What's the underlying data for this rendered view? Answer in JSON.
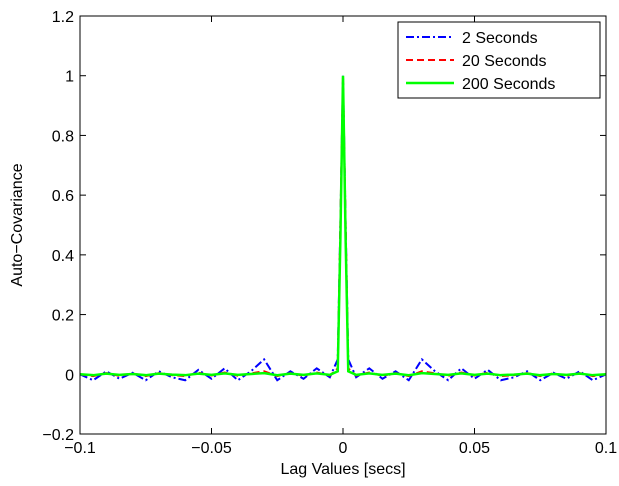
{
  "chart_data": {
    "type": "line",
    "xlabel": "Lag Values [secs]",
    "ylabel": "Auto−Covariance",
    "x": [
      -0.1,
      -0.095,
      -0.09,
      -0.085,
      -0.08,
      -0.075,
      -0.07,
      -0.065,
      -0.06,
      -0.055,
      -0.05,
      -0.045,
      -0.04,
      -0.035,
      -0.03,
      -0.025,
      -0.02,
      -0.015,
      -0.01,
      -0.005,
      -0.002,
      -0.001,
      0,
      0.001,
      0.002,
      0.005,
      0.01,
      0.015,
      0.02,
      0.025,
      0.03,
      0.035,
      0.04,
      0.045,
      0.05,
      0.055,
      0.06,
      0.065,
      0.07,
      0.075,
      0.08,
      0.085,
      0.09,
      0.095,
      0.1
    ],
    "series": [
      {
        "name": "2 Seconds",
        "color": "#0000ff",
        "linestyle": "-.",
        "values": [
          0,
          -0.02,
          0.01,
          -0.015,
          0.005,
          -0.02,
          0.01,
          -0.01,
          -0.02,
          0.015,
          -0.015,
          0.02,
          -0.02,
          0.01,
          0.05,
          -0.02,
          0.01,
          -0.015,
          0.02,
          -0.01,
          0.05,
          0.5,
          1,
          0.5,
          0.05,
          -0.01,
          0.02,
          -0.015,
          0.01,
          -0.02,
          0.05,
          0.01,
          -0.02,
          0.02,
          -0.015,
          0.015,
          -0.02,
          -0.01,
          0.01,
          -0.02,
          0.005,
          -0.015,
          0.01,
          -0.02,
          0
        ]
      },
      {
        "name": "20 Seconds",
        "color": "#ff0000",
        "linestyle": "--",
        "values": [
          0,
          -0.006,
          0.004,
          -0.005,
          0.003,
          -0.006,
          0.004,
          -0.003,
          -0.006,
          0.005,
          -0.004,
          0.006,
          -0.005,
          0.003,
          0.01,
          -0.006,
          0.004,
          -0.005,
          0.006,
          -0.004,
          0.02,
          0.5,
          1,
          0.5,
          0.02,
          -0.004,
          0.006,
          -0.005,
          0.004,
          -0.006,
          0.01,
          0.003,
          -0.005,
          0.006,
          -0.004,
          0.005,
          -0.006,
          -0.003,
          0.004,
          -0.006,
          0.003,
          -0.005,
          0.004,
          -0.006,
          0
        ]
      },
      {
        "name": "200 Seconds",
        "color": "#00ff00",
        "linestyle": "-",
        "values": [
          0,
          -0.003,
          0.002,
          -0.002,
          0.001,
          -0.003,
          0.002,
          -0.001,
          -0.003,
          0.002,
          -0.002,
          0.003,
          -0.002,
          0.001,
          0.004,
          -0.003,
          0.002,
          -0.002,
          0.003,
          -0.002,
          0.01,
          0.45,
          1,
          0.45,
          0.01,
          -0.002,
          0.003,
          -0.002,
          0.002,
          -0.003,
          0.004,
          0.001,
          -0.002,
          0.003,
          -0.002,
          0.002,
          -0.003,
          -0.001,
          0.002,
          -0.003,
          0.001,
          -0.002,
          0.002,
          -0.003,
          0
        ]
      }
    ],
    "xlim": [
      -0.1,
      0.1
    ],
    "xticks": [
      {
        "value": -0.1,
        "label": "−0.1"
      },
      {
        "value": -0.05,
        "label": "−0.05"
      },
      0,
      0.05,
      0.1
    ],
    "ylim": [
      -0.2,
      1.2
    ],
    "yticks": [
      {
        "value": -0.2,
        "label": "−0.2"
      },
      0,
      0.2,
      0.4,
      0.6,
      0.8,
      1,
      1.2
    ],
    "legend": "upper-right",
    "grid": false
  }
}
